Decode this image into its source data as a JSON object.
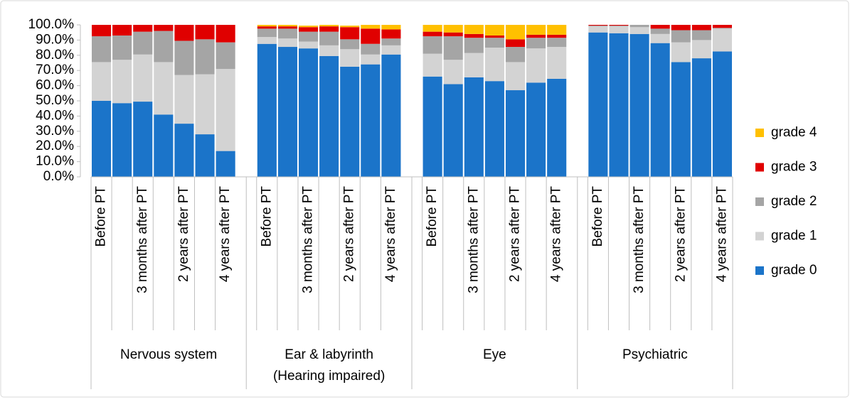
{
  "chart_data": {
    "type": "stacked-bar",
    "ylim": [
      0,
      100
    ],
    "yticks": [
      {
        "value": 0,
        "label": "0.0%"
      },
      {
        "value": 10,
        "label": "10.0%"
      },
      {
        "value": 20,
        "label": "20.0%"
      },
      {
        "value": 30,
        "label": "30.0%"
      },
      {
        "value": 40,
        "label": "40.0%"
      },
      {
        "value": 50,
        "label": "50.0%"
      },
      {
        "value": 60,
        "label": "60.0%"
      },
      {
        "value": 70,
        "label": "70.0%"
      },
      {
        "value": 80,
        "label": "80.0%"
      },
      {
        "value": 90,
        "label": "90.0%"
      },
      {
        "value": 100,
        "label": "100.0%"
      }
    ],
    "category_groups": [
      [
        "Nervous system"
      ],
      [
        "Ear & labyrinth",
        "(Hearing impaired)"
      ],
      [
        "Eye"
      ],
      [
        "Psychiatric"
      ]
    ],
    "categories": [
      "Before PT",
      null,
      "3 months after PT",
      null,
      "2 years after PT",
      null,
      "4 years after PT",
      "Before PT",
      null,
      "3 months after PT",
      null,
      "2 years after PT",
      null,
      "4 years after PT",
      "Before PT",
      null,
      "3 months after PT",
      null,
      "2 years after PT",
      null,
      "4 years after PT",
      "Before PT",
      null,
      "3 months after PT",
      null,
      "2 years after PT",
      null,
      "4 years after PT"
    ],
    "legend": "right",
    "series": [
      {
        "name": "grade 0",
        "color": "#1b74c9",
        "values": [
          50,
          48.5,
          49.5,
          41,
          35,
          28,
          17,
          87.5,
          85.5,
          84.5,
          79.5,
          72.5,
          74,
          80.5,
          66,
          61,
          65.5,
          63,
          57,
          62,
          64.5,
          95,
          94.5,
          94,
          88,
          75.5,
          78,
          82.5
        ]
      },
      {
        "name": "grade 1",
        "color": "#d3d3d3",
        "values": [
          25.5,
          28.5,
          31,
          34.5,
          32,
          39.5,
          54,
          4.5,
          5.5,
          4.5,
          7,
          11.5,
          6.5,
          6,
          15,
          16,
          16,
          22,
          18.5,
          22.5,
          21,
          4,
          4.5,
          4.5,
          6,
          13,
          12,
          15
        ]
      },
      {
        "name": "grade 2",
        "color": "#a5a5a5",
        "values": [
          17,
          16,
          15,
          20.5,
          22.5,
          23,
          17.5,
          5.5,
          6.5,
          6.5,
          9,
          6.5,
          7,
          4.5,
          11.5,
          15.5,
          10,
          6.5,
          10,
          7,
          6,
          0.5,
          0.5,
          1.5,
          3.5,
          8,
          6.5,
          0.5
        ]
      },
      {
        "name": "grade 3",
        "color": "#e00000",
        "values": [
          7.5,
          7,
          4.5,
          4,
          10.5,
          9.5,
          11.5,
          1.5,
          1.5,
          3,
          3.5,
          8,
          10,
          6,
          3,
          2.5,
          2.5,
          1.5,
          5,
          2,
          2,
          0.5,
          0.5,
          0,
          2.5,
          3.5,
          3.5,
          2
        ]
      },
      {
        "name": "grade 4",
        "color": "#ffc000",
        "values": [
          0,
          0,
          0,
          0,
          0,
          0,
          0,
          1,
          1,
          1,
          1,
          1,
          2.5,
          3,
          4.5,
          5,
          6,
          7,
          9.5,
          6.5,
          6.5,
          0,
          0,
          0,
          0,
          0,
          0,
          0
        ]
      }
    ]
  }
}
